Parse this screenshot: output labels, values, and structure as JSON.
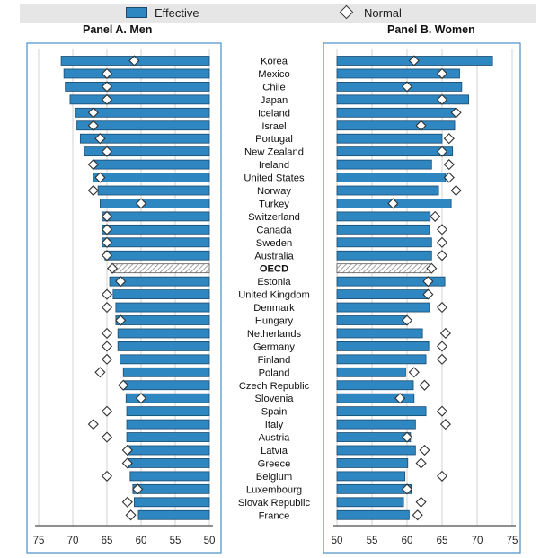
{
  "legend": {
    "effective_label": "Effective",
    "normal_label": "Normal",
    "colors": {
      "effective": "#2e87c0",
      "effective_border": "#1a4a6e",
      "normal_fill": "#ffffff",
      "oecd_hatch": "#8a8a8a",
      "panel_border": "#4a90c8"
    }
  },
  "chart_data": [
    {
      "type": "bar",
      "title": "Panel A. Men",
      "axis": "reversed",
      "xlim": [
        50,
        76
      ],
      "xticks": [
        75,
        70,
        65,
        60,
        55,
        50
      ],
      "grid": true,
      "highlight": "OECD",
      "categories": [
        "Korea",
        "Mexico",
        "Chile",
        "Japan",
        "Iceland",
        "Israel",
        "Portugal",
        "New Zealand",
        "Ireland",
        "United States",
        "Norway",
        "Turkey",
        "Switzerland",
        "Canada",
        "Sweden",
        "Australia",
        "OECD",
        "Estonia",
        "United Kingdom",
        "Denmark",
        "Hungary",
        "Netherlands",
        "Germany",
        "Finland",
        "Poland",
        "Czech Republic",
        "Slovenia",
        "Spain",
        "Italy",
        "Austria",
        "Latvia",
        "Greece",
        "Belgium",
        "Luxembourg",
        "Slovak Republic",
        "France"
      ],
      "series": [
        {
          "name": "Effective",
          "values": [
            71.7,
            71.3,
            71.1,
            70.4,
            69.6,
            69.4,
            68.9,
            68.3,
            67.0,
            67.0,
            66.3,
            66.0,
            65.7,
            65.7,
            65.7,
            65.3,
            64.3,
            64.6,
            64.1,
            63.7,
            63.7,
            63.4,
            63.4,
            63.1,
            62.6,
            62.5,
            62.2,
            62.1,
            62.1,
            62.1,
            61.9,
            61.9,
            61.6,
            61.2,
            61.0,
            60.4
          ]
        },
        {
          "name": "Normal",
          "values": [
            61,
            65,
            65,
            65,
            67,
            67,
            66,
            65,
            67,
            66,
            67,
            60,
            65,
            65,
            65,
            65,
            64.2,
            63,
            65,
            65,
            63,
            65,
            65,
            65,
            66,
            62.6,
            60,
            65,
            67,
            65,
            62,
            62,
            65,
            60.5,
            62,
            61.5
          ]
        }
      ]
    },
    {
      "type": "bar",
      "title": "Panel B. Women",
      "axis": "normal",
      "xlim": [
        50,
        76
      ],
      "xticks": [
        50,
        55,
        60,
        65,
        70,
        75
      ],
      "grid": true,
      "highlight": "OECD",
      "categories": [
        "Korea",
        "Mexico",
        "Chile",
        "Japan",
        "Iceland",
        "Israel",
        "Portugal",
        "New Zealand",
        "Ireland",
        "United States",
        "Norway",
        "Turkey",
        "Switzerland",
        "Canada",
        "Sweden",
        "Australia",
        "OECD",
        "Estonia",
        "United Kingdom",
        "Denmark",
        "Hungary",
        "Netherlands",
        "Germany",
        "Finland",
        "Poland",
        "Czech Republic",
        "Slovenia",
        "Spain",
        "Italy",
        "Austria",
        "Latvia",
        "Greece",
        "Belgium",
        "Luxembourg",
        "Slovak Republic",
        "France"
      ],
      "series": [
        {
          "name": "Effective",
          "values": [
            72.2,
            67.5,
            67.8,
            68.8,
            67.0,
            66.8,
            65.0,
            66.5,
            63.5,
            65.5,
            64.5,
            66.3,
            63.3,
            63.2,
            63.5,
            63.5,
            63.2,
            65.4,
            62.9,
            63.2,
            60.0,
            62.2,
            63.1,
            62.7,
            59.8,
            60.9,
            61.0,
            62.7,
            61.2,
            60.5,
            61.2,
            60.1,
            59.7,
            60.6,
            59.5,
            60.3
          ]
        },
        {
          "name": "Normal",
          "values": [
            61,
            65,
            60,
            65,
            67,
            62,
            66,
            65,
            66,
            66,
            67,
            58,
            64,
            65,
            65,
            65,
            63.5,
            63,
            63,
            65,
            60,
            65.5,
            65,
            65,
            61,
            62.5,
            59,
            65,
            65.5,
            60,
            62.5,
            62,
            65,
            60,
            62,
            61.5
          ]
        }
      ]
    }
  ]
}
